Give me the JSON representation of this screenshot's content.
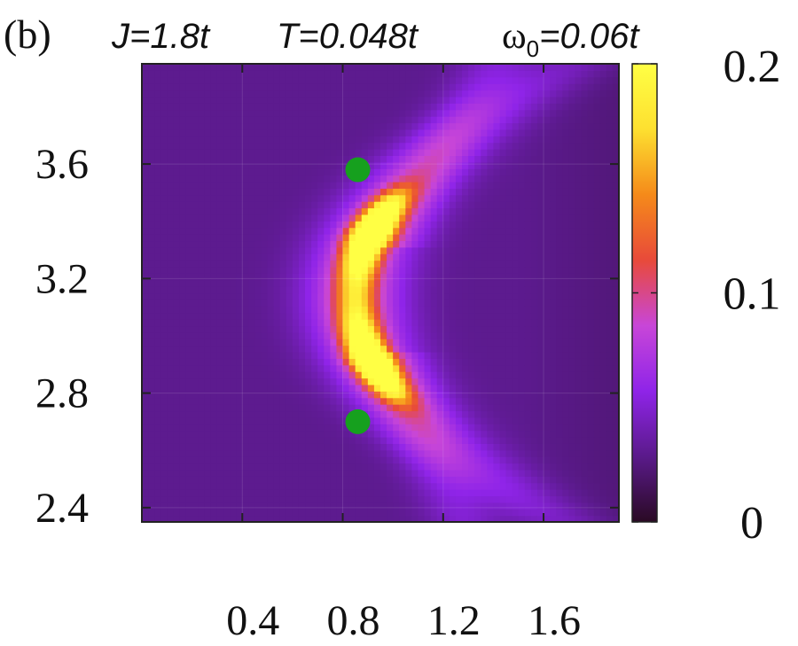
{
  "chart_data": {
    "type": "heatmap",
    "panel_label": "(b)",
    "header": {
      "j_label": "J=1.8t",
      "t_label": "T=0.048t",
      "omega_symbol": "ω",
      "omega_subscript": "0",
      "omega_value": "=0.06t"
    },
    "xlabel": "",
    "ylabel": "",
    "xlim": [
      0.0,
      1.9
    ],
    "ylim": [
      2.35,
      3.95
    ],
    "x_ticks": [
      {
        "value": 0.4,
        "label": "0.4"
      },
      {
        "value": 0.8,
        "label": "0.8"
      },
      {
        "value": 1.2,
        "label": "1.2"
      },
      {
        "value": 1.6,
        "label": "1.6"
      }
    ],
    "y_ticks": [
      {
        "value": 2.4,
        "label": "2.4"
      },
      {
        "value": 2.8,
        "label": "2.8"
      },
      {
        "value": 3.2,
        "label": "3.2"
      },
      {
        "value": 3.6,
        "label": "3.6"
      }
    ],
    "colorbar": {
      "range": [
        0,
        0.2
      ],
      "ticks": [
        {
          "value": 0,
          "label": "0"
        },
        {
          "value": 0.1,
          "label": "0.1"
        },
        {
          "value": 0.2,
          "label": "0.2"
        }
      ],
      "colors": [
        "#2a0a24",
        "#5a1a8a",
        "#8f24e8",
        "#c846d8",
        "#e84a3a",
        "#f58a1a",
        "#fde030",
        "#ffff44"
      ]
    },
    "markers": [
      {
        "x": 0.86,
        "y": 3.58,
        "color": "#16a01e"
      },
      {
        "x": 0.86,
        "y": 2.7,
        "color": "#16a01e"
      }
    ],
    "intensity_model": {
      "ridge_x": 0.85,
      "ridge_center_y": 3.14,
      "ridge_bend": 1.3,
      "y_min": 2.7,
      "y_max": 3.58,
      "peak_value": 0.26,
      "background_value": 0.03
    }
  }
}
